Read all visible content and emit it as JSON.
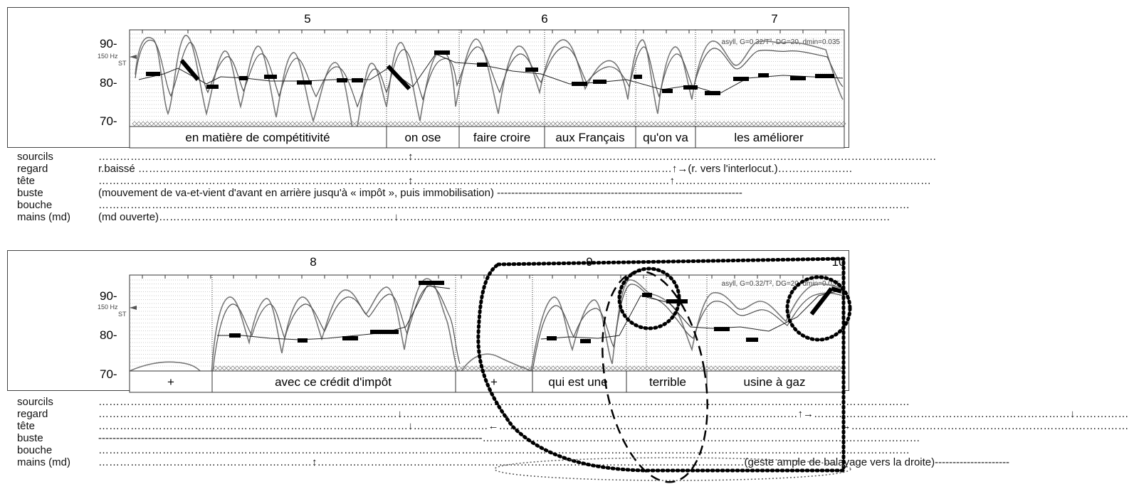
{
  "panels": [
    {
      "segment_numbers": [
        "5",
        "6",
        "7"
      ],
      "axis_ticks": [
        "90-",
        "80-",
        "70-"
      ],
      "freq_label": "150 Hz",
      "st_label": "ST",
      "params": "asyll, G=0.32/T², DG=20, dmin=0.035",
      "words": [
        "en matière de compétitivité",
        "on ose",
        "faire croire",
        "aux Français",
        "qu'on va",
        "les améliorer"
      ],
      "rows": [
        {
          "label": "sourcils",
          "parts": [
            "……………………………………………………………………………",
            "↕",
            "…………………………………………………………………………………………………………………………………"
          ]
        },
        {
          "label": "regard",
          "parts": [
            "r.baissé ……………………………………………………………………………………………………………………………………",
            "↑",
            "→(r. vers l'interlocut.)…………………"
          ]
        },
        {
          "label": "tête",
          "parts": [
            "……………………………………………………………………………",
            "↕",
            "………………………………………………………………",
            "↑",
            "………………………………………………………………"
          ]
        },
        {
          "label": "buste",
          "parts": [
            "(mouvement de va-et-vient d'avant en arrière jusqu'à « impôt », puis immobilisation) ---------------------------------------------------------------------"
          ]
        },
        {
          "label": "bouche",
          "parts": [
            "…………………………………………………………………………………………………………………………………………………………………………………………………………"
          ]
        },
        {
          "label": "mains (md)",
          "parts": [
            "(md ouverte)…………………………………………………………",
            "↓",
            "…………………………………………………………………………………………………………………………"
          ]
        }
      ]
    },
    {
      "segment_numbers": [
        "8",
        "9",
        "10"
      ],
      "axis_ticks": [
        "90-",
        "80-",
        "70-"
      ],
      "freq_label": "150 Hz",
      "st_label": "ST",
      "params": "asyll, G=0.32/T², DG=20, dmin=0.035",
      "words": [
        "+",
        "avec ce crédit d'impôt",
        "+",
        "qui est une",
        "terrible",
        "usine à gaz"
      ],
      "rows": [
        {
          "label": "sourcils",
          "parts": [
            "…………………………………………………………………………………………………………………………………………………………………………………………………………"
          ]
        },
        {
          "label": "regard",
          "parts": [
            "…………………………………………………………………………",
            "↓",
            "…………………………………………………………………………………………………",
            "↑→",
            "………………………………………………………………",
            "↓",
            "……………"
          ]
        },
        {
          "label": "tête",
          "parts": [
            "……………………………………………………………………………",
            "↓",
            "…………………",
            "←",
            "……………………………………………………………………………………",
            "→",
            "……………………………………………………………………"
          ]
        },
        {
          "label": "buste",
          "parts": [
            "------------------------------------------------------------------------------------------------------------",
            "……………………………………………………………………………………………………………"
          ]
        },
        {
          "label": "bouche",
          "parts": [
            "…………………………………………………………………………………………………………………………………………………………………………………………………………"
          ]
        },
        {
          "label": "mains (md)",
          "parts": [
            "……………………………………………………",
            "↕",
            "…………………………………………………………………………………………………………",
            "(geste ample de balayage vers la droite)",
            "---------------------"
          ]
        }
      ]
    }
  ]
}
